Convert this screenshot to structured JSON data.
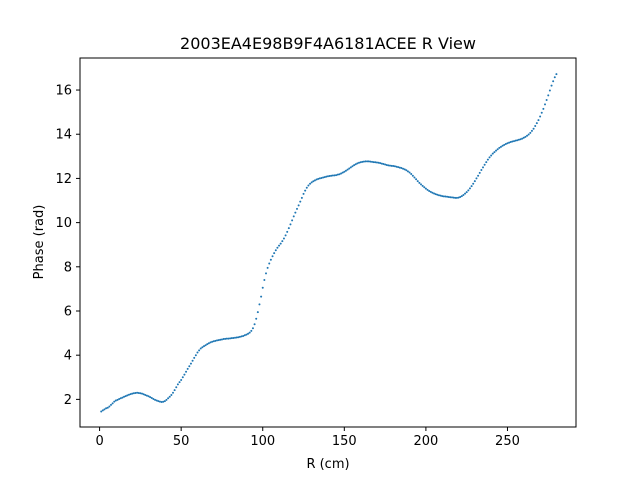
{
  "chart_data": {
    "type": "scatter",
    "title": "2003EA4E98B9F4A6181ACEE R View",
    "xlabel": "R (cm)",
    "ylabel": "Phase (rad)",
    "xlim": [
      -12,
      292
    ],
    "ylim": [
      0.75,
      17.45
    ],
    "xticks": [
      0,
      50,
      100,
      150,
      200,
      250
    ],
    "yticks": [
      2,
      4,
      6,
      8,
      10,
      12,
      14,
      16
    ],
    "grid": false,
    "legend": "none",
    "marker_color": "#1f77b4",
    "points": [
      [
        1,
        1.45
      ],
      [
        2,
        1.5
      ],
      [
        3,
        1.55
      ],
      [
        4,
        1.6
      ],
      [
        5,
        1.62
      ],
      [
        6,
        1.68
      ],
      [
        7,
        1.75
      ],
      [
        8,
        1.82
      ],
      [
        9,
        1.9
      ],
      [
        10,
        1.95
      ],
      [
        11,
        1.98
      ],
      [
        12,
        2.02
      ],
      [
        13,
        2.05
      ],
      [
        14,
        2.08
      ],
      [
        15,
        2.12
      ],
      [
        16,
        2.15
      ],
      [
        17,
        2.18
      ],
      [
        18,
        2.21
      ],
      [
        19,
        2.24
      ],
      [
        20,
        2.26
      ],
      [
        21,
        2.28
      ],
      [
        22,
        2.29
      ],
      [
        23,
        2.3
      ],
      [
        24,
        2.29
      ],
      [
        25,
        2.28
      ],
      [
        26,
        2.26
      ],
      [
        27,
        2.23
      ],
      [
        28,
        2.2
      ],
      [
        29,
        2.17
      ],
      [
        30,
        2.14
      ],
      [
        31,
        2.1
      ],
      [
        32,
        2.06
      ],
      [
        33,
        2.02
      ],
      [
        34,
        1.98
      ],
      [
        35,
        1.95
      ],
      [
        36,
        1.92
      ],
      [
        37,
        1.9
      ],
      [
        38,
        1.88
      ],
      [
        39,
        1.89
      ],
      [
        40,
        1.92
      ],
      [
        41,
        1.98
      ],
      [
        42,
        2.05
      ],
      [
        43,
        2.12
      ],
      [
        44,
        2.2
      ],
      [
        45,
        2.3
      ],
      [
        46,
        2.42
      ],
      [
        47,
        2.55
      ],
      [
        48,
        2.68
      ],
      [
        49,
        2.78
      ],
      [
        50,
        2.88
      ],
      [
        51,
        3.0
      ],
      [
        52,
        3.12
      ],
      [
        53,
        3.25
      ],
      [
        54,
        3.38
      ],
      [
        55,
        3.5
      ],
      [
        56,
        3.62
      ],
      [
        57,
        3.75
      ],
      [
        58,
        3.88
      ],
      [
        59,
        4.0
      ],
      [
        60,
        4.12
      ],
      [
        61,
        4.22
      ],
      [
        62,
        4.3
      ],
      [
        63,
        4.36
      ],
      [
        64,
        4.41
      ],
      [
        65,
        4.45
      ],
      [
        66,
        4.5
      ],
      [
        67,
        4.54
      ],
      [
        68,
        4.58
      ],
      [
        69,
        4.61
      ],
      [
        70,
        4.63
      ],
      [
        71,
        4.65
      ],
      [
        72,
        4.67
      ],
      [
        73,
        4.68
      ],
      [
        74,
        4.7
      ],
      [
        75,
        4.71
      ],
      [
        76,
        4.73
      ],
      [
        77,
        4.74
      ],
      [
        78,
        4.75
      ],
      [
        79,
        4.75
      ],
      [
        80,
        4.76
      ],
      [
        81,
        4.77
      ],
      [
        82,
        4.78
      ],
      [
        83,
        4.79
      ],
      [
        84,
        4.8
      ],
      [
        85,
        4.81
      ],
      [
        86,
        4.83
      ],
      [
        87,
        4.85
      ],
      [
        88,
        4.87
      ],
      [
        89,
        4.9
      ],
      [
        90,
        4.93
      ],
      [
        91,
        4.97
      ],
      [
        92,
        5.02
      ],
      [
        93,
        5.1
      ],
      [
        94,
        5.22
      ],
      [
        95,
        5.4
      ],
      [
        96,
        5.65
      ],
      [
        97,
        5.95
      ],
      [
        98,
        6.3
      ],
      [
        99,
        6.65
      ],
      [
        100,
        7.05
      ],
      [
        101,
        7.4
      ],
      [
        102,
        7.7
      ],
      [
        103,
        7.95
      ],
      [
        104,
        8.15
      ],
      [
        105,
        8.32
      ],
      [
        106,
        8.48
      ],
      [
        107,
        8.62
      ],
      [
        108,
        8.75
      ],
      [
        109,
        8.86
      ],
      [
        110,
        8.96
      ],
      [
        111,
        9.05
      ],
      [
        112,
        9.16
      ],
      [
        113,
        9.28
      ],
      [
        114,
        9.42
      ],
      [
        115,
        9.58
      ],
      [
        116,
        9.75
      ],
      [
        117,
        9.92
      ],
      [
        118,
        10.1
      ],
      [
        119,
        10.28
      ],
      [
        120,
        10.45
      ],
      [
        121,
        10.62
      ],
      [
        122,
        10.78
      ],
      [
        123,
        10.95
      ],
      [
        124,
        11.12
      ],
      [
        125,
        11.3
      ],
      [
        126,
        11.45
      ],
      [
        127,
        11.58
      ],
      [
        128,
        11.68
      ],
      [
        129,
        11.76
      ],
      [
        130,
        11.82
      ],
      [
        131,
        11.87
      ],
      [
        132,
        11.91
      ],
      [
        133,
        11.95
      ],
      [
        134,
        11.98
      ],
      [
        135,
        12.0
      ],
      [
        136,
        12.02
      ],
      [
        137,
        12.04
      ],
      [
        138,
        12.06
      ],
      [
        139,
        12.08
      ],
      [
        140,
        12.1
      ],
      [
        141,
        12.11
      ],
      [
        142,
        12.12
      ],
      [
        143,
        12.13
      ],
      [
        144,
        12.14
      ],
      [
        145,
        12.15
      ],
      [
        146,
        12.17
      ],
      [
        147,
        12.19
      ],
      [
        148,
        12.22
      ],
      [
        149,
        12.26
      ],
      [
        150,
        12.3
      ],
      [
        151,
        12.35
      ],
      [
        152,
        12.4
      ],
      [
        153,
        12.45
      ],
      [
        154,
        12.5
      ],
      [
        155,
        12.55
      ],
      [
        156,
        12.6
      ],
      [
        157,
        12.64
      ],
      [
        158,
        12.68
      ],
      [
        159,
        12.71
      ],
      [
        160,
        12.73
      ],
      [
        161,
        12.75
      ],
      [
        162,
        12.76
      ],
      [
        163,
        12.77
      ],
      [
        164,
        12.77
      ],
      [
        165,
        12.77
      ],
      [
        166,
        12.76
      ],
      [
        167,
        12.75
      ],
      [
        168,
        12.74
      ],
      [
        169,
        12.73
      ],
      [
        170,
        12.72
      ],
      [
        171,
        12.71
      ],
      [
        172,
        12.69
      ],
      [
        173,
        12.67
      ],
      [
        174,
        12.65
      ],
      [
        175,
        12.63
      ],
      [
        176,
        12.61
      ],
      [
        177,
        12.59
      ],
      [
        178,
        12.58
      ],
      [
        179,
        12.57
      ],
      [
        180,
        12.56
      ],
      [
        181,
        12.55
      ],
      [
        182,
        12.53
      ],
      [
        183,
        12.51
      ],
      [
        184,
        12.49
      ],
      [
        185,
        12.47
      ],
      [
        186,
        12.44
      ],
      [
        187,
        12.41
      ],
      [
        188,
        12.37
      ],
      [
        189,
        12.32
      ],
      [
        190,
        12.27
      ],
      [
        191,
        12.2
      ],
      [
        192,
        12.12
      ],
      [
        193,
        12.04
      ],
      [
        194,
        11.96
      ],
      [
        195,
        11.88
      ],
      [
        196,
        11.8
      ],
      [
        197,
        11.73
      ],
      [
        198,
        11.66
      ],
      [
        199,
        11.6
      ],
      [
        200,
        11.54
      ],
      [
        201,
        11.48
      ],
      [
        202,
        11.43
      ],
      [
        203,
        11.39
      ],
      [
        204,
        11.35
      ],
      [
        205,
        11.32
      ],
      [
        206,
        11.29
      ],
      [
        207,
        11.26
      ],
      [
        208,
        11.24
      ],
      [
        209,
        11.22
      ],
      [
        210,
        11.2
      ],
      [
        211,
        11.19
      ],
      [
        212,
        11.18
      ],
      [
        213,
        11.17
      ],
      [
        214,
        11.16
      ],
      [
        215,
        11.15
      ],
      [
        216,
        11.14
      ],
      [
        217,
        11.13
      ],
      [
        218,
        11.12
      ],
      [
        219,
        11.12
      ],
      [
        220,
        11.13
      ],
      [
        221,
        11.16
      ],
      [
        222,
        11.2
      ],
      [
        223,
        11.25
      ],
      [
        224,
        11.31
      ],
      [
        225,
        11.38
      ],
      [
        226,
        11.46
      ],
      [
        227,
        11.55
      ],
      [
        228,
        11.65
      ],
      [
        229,
        11.76
      ],
      [
        230,
        11.88
      ],
      [
        231,
        12.0
      ],
      [
        232,
        12.12
      ],
      [
        233,
        12.25
      ],
      [
        234,
        12.38
      ],
      [
        235,
        12.5
      ],
      [
        236,
        12.62
      ],
      [
        237,
        12.74
      ],
      [
        238,
        12.85
      ],
      [
        239,
        12.95
      ],
      [
        240,
        13.04
      ],
      [
        241,
        13.12
      ],
      [
        242,
        13.19
      ],
      [
        243,
        13.26
      ],
      [
        244,
        13.32
      ],
      [
        245,
        13.38
      ],
      [
        246,
        13.43
      ],
      [
        247,
        13.48
      ],
      [
        248,
        13.52
      ],
      [
        249,
        13.56
      ],
      [
        250,
        13.59
      ],
      [
        251,
        13.62
      ],
      [
        252,
        13.65
      ],
      [
        253,
        13.67
      ],
      [
        254,
        13.69
      ],
      [
        255,
        13.71
      ],
      [
        256,
        13.73
      ],
      [
        257,
        13.75
      ],
      [
        258,
        13.77
      ],
      [
        259,
        13.8
      ],
      [
        260,
        13.84
      ],
      [
        261,
        13.88
      ],
      [
        262,
        13.93
      ],
      [
        263,
        13.99
      ],
      [
        264,
        14.06
      ],
      [
        265,
        14.15
      ],
      [
        266,
        14.25
      ],
      [
        267,
        14.37
      ],
      [
        268,
        14.5
      ],
      [
        269,
        14.64
      ],
      [
        270,
        14.8
      ],
      [
        271,
        14.97
      ],
      [
        272,
        15.15
      ],
      [
        273,
        15.35
      ],
      [
        274,
        15.55
      ],
      [
        275,
        15.76
      ],
      [
        276,
        15.98
      ],
      [
        277,
        16.2
      ],
      [
        278,
        16.4
      ],
      [
        279,
        16.58
      ],
      [
        280,
        16.72
      ]
    ]
  }
}
